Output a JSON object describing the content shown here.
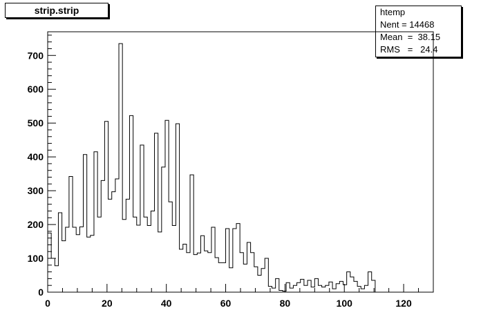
{
  "title_box": {
    "label": "strip.strip"
  },
  "stats_box": {
    "name": "htemp",
    "rows": [
      {
        "text": "Nent = 14468"
      },
      {
        "text": "Mean  =  38.15"
      },
      {
        "text": "RMS   =   24.4"
      }
    ]
  },
  "chart_data": {
    "type": "bar",
    "histogram": true,
    "title": "",
    "xlabel": "",
    "ylabel": "",
    "xlim": [
      0,
      130
    ],
    "ylim": [
      0,
      770
    ],
    "bin_width": 1.2,
    "x_ticks": [
      0,
      20,
      40,
      60,
      80,
      100,
      120
    ],
    "y_ticks": [
      0,
      100,
      200,
      300,
      400,
      500,
      600,
      700
    ],
    "values": [
      175,
      100,
      78,
      235,
      152,
      192,
      342,
      192,
      170,
      193,
      407,
      163,
      168,
      415,
      222,
      330,
      505,
      275,
      297,
      335,
      735,
      215,
      275,
      522,
      222,
      198,
      435,
      222,
      197,
      240,
      470,
      178,
      370,
      508,
      267,
      197,
      498,
      127,
      142,
      117,
      347,
      111,
      116,
      167,
      122,
      117,
      192,
      102,
      87,
      87,
      188,
      72,
      188,
      203,
      117,
      83,
      147,
      117,
      75,
      50,
      70,
      100,
      17,
      12,
      40,
      5,
      3,
      28,
      12,
      20,
      28,
      38,
      20,
      35,
      15,
      40,
      20,
      15,
      20,
      30,
      10,
      25,
      32,
      22,
      60,
      45,
      32,
      17,
      10,
      20,
      60,
      35
    ]
  }
}
